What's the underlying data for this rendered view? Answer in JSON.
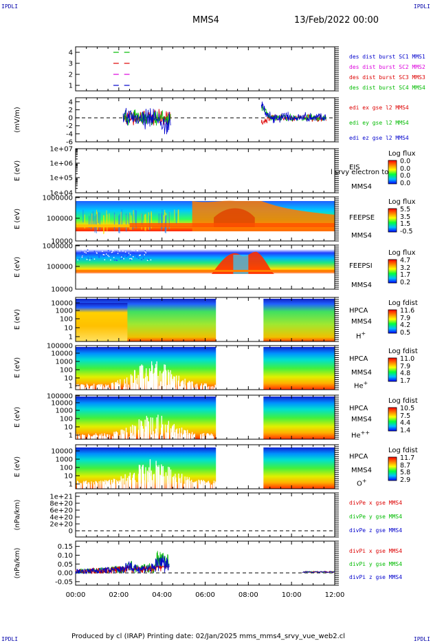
{
  "header": {
    "corner_tl": "IPDLI",
    "corner_tr": "IPDLI",
    "corner_bl": "IPDLI",
    "corner_br": "IPDLI",
    "spacecraft": "MMS4",
    "date": "13/Feb/2022 00:00"
  },
  "footer": {
    "text": "Produced by cl (IRAP)   Printing date: 02/Jan/2025   mms_mms4_srvy_vue_web2.cl"
  },
  "chart_data": [
    {
      "type": "line",
      "id": "sc-availability",
      "ylabel": "",
      "yticks": [
        "4",
        "3",
        "2",
        "1"
      ],
      "legend": [
        {
          "label": "des dist burst SC1 MMS1",
          "color": "#0000cc"
        },
        {
          "label": "des dist burst SC2 MMS2",
          "color": "#dd00dd"
        },
        {
          "label": "des dist burst SC3 MMS3",
          "color": "#dd0000"
        },
        {
          "label": "des dist burst SC4 MMS4",
          "color": "#00bb00"
        }
      ],
      "segments": [
        {
          "sc": 4,
          "color": "#00bb00",
          "x": [
            [
              1.75,
              2.0
            ],
            [
              2.25,
              2.5
            ]
          ]
        },
        {
          "sc": 3,
          "color": "#dd0000",
          "x": [
            [
              1.75,
              2.0
            ],
            [
              2.25,
              2.5
            ]
          ]
        },
        {
          "sc": 2,
          "color": "#dd00dd",
          "x": [
            [
              1.75,
              2.0
            ],
            [
              2.25,
              2.5
            ]
          ]
        },
        {
          "sc": 1,
          "color": "#0000cc",
          "x": [
            [
              1.75,
              2.0
            ],
            [
              2.25,
              2.5
            ]
          ]
        }
      ]
    },
    {
      "type": "line",
      "id": "edi-electric-field",
      "ylabel": "(mV/m)",
      "yticks": [
        "4",
        "2",
        "0",
        "-2",
        "-4",
        "-6"
      ],
      "ylim": [
        -6,
        5
      ],
      "legend": [
        {
          "label": "edi ex gse l2 MMS4",
          "color": "#dd0000"
        },
        {
          "label": "edi ey gse l2 MMS4",
          "color": "#00bb00"
        },
        {
          "label": "edi ez gse l2 MMS4",
          "color": "#0000cc"
        }
      ],
      "bursts": [
        [
          2.2,
          4.4
        ],
        [
          8.6,
          11.6
        ]
      ]
    },
    {
      "type": "heatmap",
      "id": "eis",
      "ylabel": "E (eV)",
      "yticks": [
        "1e+07",
        "1e+06",
        "1e+05",
        "1e+04"
      ],
      "instrument": "EIS",
      "sc_label": "MMS4",
      "overlay": "l srvy electron to",
      "cbar_title": "Log flux",
      "cbar_ticks": [
        "0.0",
        "0.0",
        "0.0",
        "0.0"
      ]
    },
    {
      "type": "heatmap",
      "id": "feepse",
      "ylabel": "E (eV)",
      "yticks": [
        "1000000",
        "100000",
        "10000"
      ],
      "instrument": "FEEPSE",
      "sc_label": "MMS4",
      "cbar_title": "Log flux",
      "cbar_ticks": [
        "5.5",
        "3.5",
        "1.5",
        "-0.5"
      ]
    },
    {
      "type": "heatmap",
      "id": "feepsi",
      "ylabel": "E (eV)",
      "yticks": [
        "1000000",
        "100000",
        "10000"
      ],
      "instrument": "FEEPSI",
      "sc_label": "MMS4",
      "cbar_title": "Log flux",
      "cbar_ticks": [
        "4.7",
        "3.2",
        "1.7",
        "0.2"
      ]
    },
    {
      "type": "heatmap",
      "id": "hpca-h",
      "ylabel": "E (eV)",
      "yticks": [
        "10000",
        "1000",
        "100",
        "10",
        "1"
      ],
      "instrument": "HPCA",
      "sc_label": "MMS4",
      "species": "H",
      "charge": "+",
      "cbar_title": "Log fdist",
      "cbar_ticks": [
        "11.6",
        "7.9",
        "4.2",
        "0.5"
      ],
      "gap": [
        6.5,
        8.7
      ]
    },
    {
      "type": "heatmap",
      "id": "hpca-he1",
      "ylabel": "E (eV)",
      "yticks": [
        "100000",
        "10000",
        "1000",
        "100",
        "10",
        "1"
      ],
      "instrument": "HPCA",
      "sc_label": "MMS4",
      "species": "He",
      "charge": "+",
      "cbar_title": "Log fdist",
      "cbar_ticks": [
        "11.0",
        "7.9",
        "4.8",
        "1.7"
      ],
      "gap": [
        6.5,
        8.7
      ]
    },
    {
      "type": "heatmap",
      "id": "hpca-he2",
      "ylabel": "E (eV)",
      "yticks": [
        "100000",
        "10000",
        "1000",
        "100",
        "10",
        "1"
      ],
      "instrument": "HPCA",
      "sc_label": "MMS4",
      "species": "He",
      "charge": "++",
      "cbar_title": "Log fdist",
      "cbar_ticks": [
        "10.5",
        "7.5",
        "4.4",
        "1.4"
      ],
      "gap": [
        6.5,
        8.7
      ]
    },
    {
      "type": "heatmap",
      "id": "hpca-o",
      "ylabel": "E (eV)",
      "yticks": [
        "10000",
        "1000",
        "100",
        "10",
        "1"
      ],
      "instrument": "HPCA",
      "sc_label": "MMS4",
      "species": "O",
      "charge": "+",
      "cbar_title": "Log fdist",
      "cbar_ticks": [
        "11.7",
        "8.7",
        "5.8",
        "2.9"
      ],
      "gap": [
        6.5,
        8.7
      ]
    },
    {
      "type": "line",
      "id": "divpe",
      "ylabel": "(nPa/km)",
      "yticks": [
        "1e+21",
        "8e+20",
        "6e+20",
        "4e+20",
        "2e+20",
        "0"
      ],
      "legend": [
        {
          "label": "divPe x gse MMS4",
          "color": "#dd0000"
        },
        {
          "label": "divPe y gse MMS4",
          "color": "#00bb00"
        },
        {
          "label": "divPe z gse MMS4",
          "color": "#0000cc"
        }
      ]
    },
    {
      "type": "line",
      "id": "divpi",
      "ylabel": "(nPa/km)",
      "yticks": [
        "0.15",
        "0.10",
        "0.05",
        "0.00",
        "-0.05"
      ],
      "ylim": [
        -0.07,
        0.18
      ],
      "legend": [
        {
          "label": "divPi x gse MMS4",
          "color": "#dd0000"
        },
        {
          "label": "divPi y gse MMS4",
          "color": "#00bb00"
        },
        {
          "label": "divPi z gse MMS4",
          "color": "#0000cc"
        }
      ]
    }
  ],
  "x_axis": {
    "xlim": [
      0,
      12
    ],
    "tick_labels": [
      "00:00",
      "02:00",
      "04:00",
      "06:00",
      "08:00",
      "10:00",
      "12:00"
    ]
  }
}
